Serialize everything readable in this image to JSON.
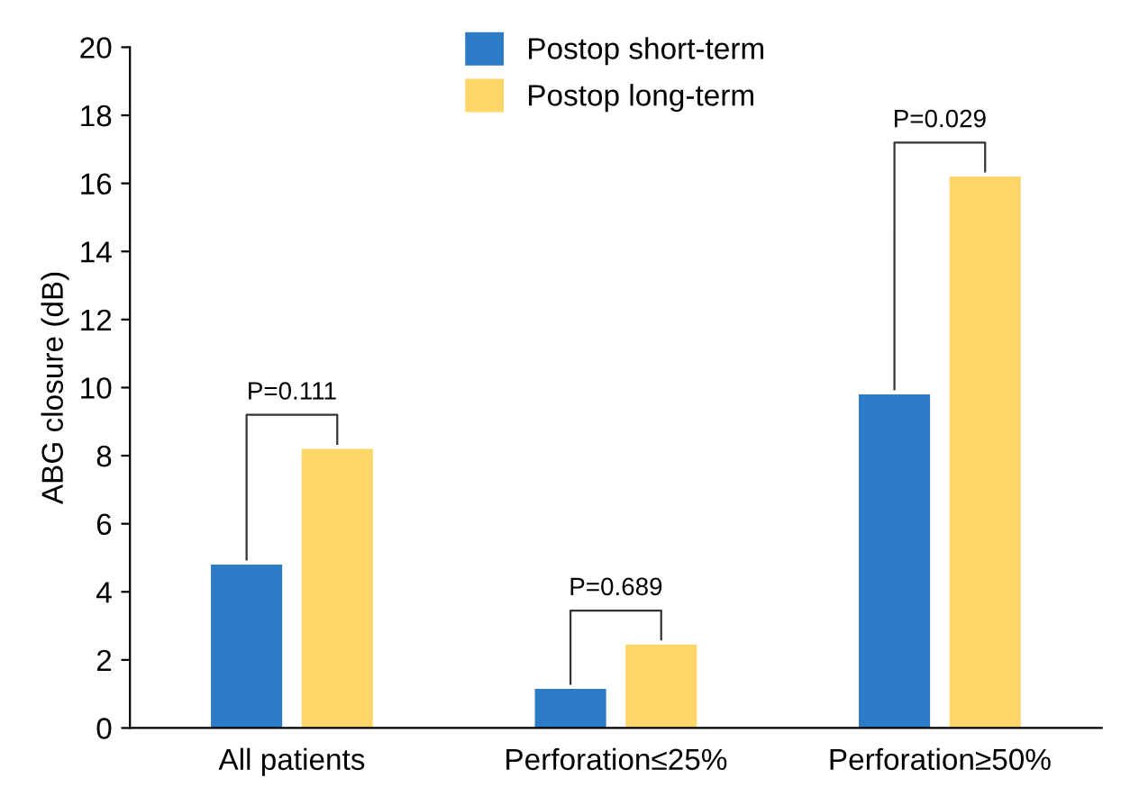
{
  "chart_data": {
    "type": "bar",
    "ylabel": "ABG closure (dB)",
    "categories": [
      "All patients",
      "Perforation≤25%",
      "Perforation≥50%"
    ],
    "series": [
      {
        "name": "Postop short-term",
        "color": "#2b7bc6",
        "values": [
          4.8,
          1.15,
          9.8
        ]
      },
      {
        "name": "Postop long-term",
        "color": "#fdd568",
        "values": [
          8.2,
          2.45,
          16.2
        ]
      }
    ],
    "ylim": [
      0,
      20
    ],
    "yticks": [
      0,
      2,
      4,
      6,
      8,
      10,
      12,
      14,
      16,
      18,
      20
    ],
    "annotations": [
      "P=0.111",
      "P=0.689",
      "P=0.029"
    ],
    "legend": "top",
    "grid": false
  }
}
